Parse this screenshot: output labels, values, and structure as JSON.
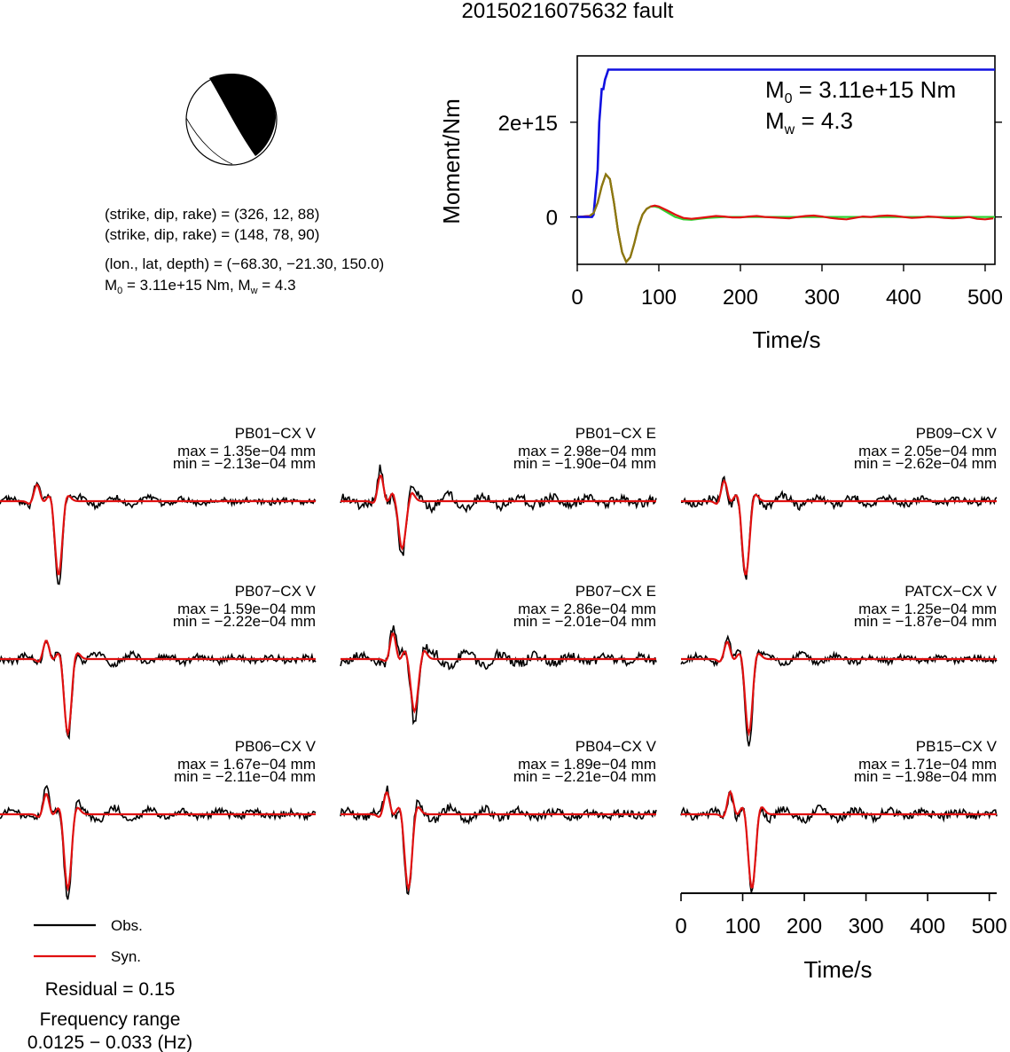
{
  "title": "20150216075632 fault",
  "mechanism": {
    "strike_dip_rake_1_label": "(strike, dip, rake) = (326, 12, 88)",
    "strike_dip_rake_2_label": "(strike, dip, rake) = (148, 78, 90)",
    "location_label": "(lon., lat, depth) = (−68.30, −21.30, 150.0)",
    "m0_prefix": "M",
    "m0_sub": "0",
    "m0_value_text": " = 3.11e+15 Nm, M",
    "mw_sub": "w",
    "mw_value_text": " = 4.3",
    "plane1": {
      "strike": 326,
      "dip": 12,
      "rake": 88
    },
    "plane2": {
      "strike": 148,
      "dip": 78,
      "rake": 90
    },
    "lon": -68.3,
    "lat": -21.3,
    "depth": 150.0
  },
  "moment_panel": {
    "annotation_m0_prefix": "M",
    "annotation_m0_sub": "0",
    "annotation_m0_value": " = 3.11e+15 Nm",
    "annotation_mw_prefix": "M",
    "annotation_mw_sub": "w",
    "annotation_mw_value": " = 4.3"
  },
  "legend": {
    "obs_label": "Obs.",
    "syn_label": "Syn.",
    "obs_color": "#000000",
    "syn_color": "#e01010"
  },
  "residual_label": "Residual = 0.15",
  "frequency_label": "Frequency range",
  "frequency_value": "0.0125 − 0.033 (Hz)",
  "chart_data": [
    {
      "type": "line",
      "xlabel": "Time/s",
      "ylabel": "Moment/Nm",
      "xlim": [
        0,
        512
      ],
      "ylim": [
        -1000000000000000.0,
        3400000000000000.0
      ],
      "xticks": [
        0,
        100,
        200,
        300,
        400,
        500
      ],
      "yticks": [
        0,
        2000000000000000.0
      ],
      "ytick_labels": [
        "0",
        "2e+15"
      ],
      "colors": {
        "cumulative": "#1010e0",
        "observed": "#e01010",
        "fit": "#30d030",
        "overlap": "#8a7a10"
      },
      "series": [
        {
          "name": "cumulative",
          "x": [
            0,
            18,
            20,
            25,
            27,
            30,
            32,
            34,
            36,
            38,
            40,
            512
          ],
          "y": [
            0,
            0,
            50000000000000.0,
            1000000000000000.0,
            2000000000000000.0,
            2700000000000000.0,
            2700000000000000.0,
            2900000000000000.0,
            3000000000000000.0,
            3110000000000000.0,
            3110000000000000.0,
            3110000000000000.0
          ]
        },
        {
          "name": "observed",
          "x": [
            0,
            15,
            20,
            25,
            30,
            35,
            40,
            45,
            50,
            55,
            60,
            65,
            70,
            75,
            80,
            85,
            90,
            95,
            100,
            110,
            120,
            130,
            140,
            150,
            160,
            170,
            180,
            190,
            200,
            210,
            220,
            230,
            240,
            250,
            260,
            270,
            280,
            290,
            300,
            310,
            320,
            330,
            340,
            350,
            360,
            370,
            380,
            390,
            400,
            410,
            420,
            430,
            440,
            450,
            460,
            470,
            480,
            490,
            500,
            510
          ],
          "y": [
            0,
            20000000000000.0,
            80000000000000.0,
            300000000000000.0,
            650000000000000.0,
            900000000000000.0,
            800000000000000.0,
            300000000000000.0,
            -300000000000000.0,
            -750000000000000.0,
            -950000000000000.0,
            -850000000000000.0,
            -550000000000000.0,
            -200000000000000.0,
            50000000000000.0,
            170000000000000.0,
            220000000000000.0,
            240000000000000.0,
            220000000000000.0,
            140000000000000.0,
            50000000000000.0,
            -20000000000000.0,
            -40000000000000.0,
            -20000000000000.0,
            0.0,
            20000000000000.0,
            10000000000000.0,
            -10000000000000.0,
            -10000000000000.0,
            10000000000000.0,
            20000000000000.0,
            0.0,
            -10000000000000.0,
            -20000000000000.0,
            -30000000000000.0,
            0.0,
            20000000000000.0,
            30000000000000.0,
            10000000000000.0,
            -20000000000000.0,
            -40000000000000.0,
            -50000000000000.0,
            -20000000000000.0,
            10000000000000.0,
            0.0,
            20000000000000.0,
            30000000000000.0,
            20000000000000.0,
            0.0,
            -20000000000000.0,
            -10000000000000.0,
            10000000000000.0,
            0.0,
            -20000000000000.0,
            -30000000000000.0,
            -20000000000000.0,
            0.0,
            -40000000000000.0,
            -50000000000000.0,
            -30000000000000.0
          ]
        },
        {
          "name": "fit",
          "x": [
            0,
            15,
            20,
            25,
            30,
            35,
            40,
            45,
            50,
            55,
            60,
            65,
            70,
            75,
            80,
            85,
            90,
            95,
            100,
            110,
            120,
            130,
            140,
            150,
            160,
            170,
            180,
            200,
            250,
            300,
            350,
            400,
            450,
            512
          ],
          "y": [
            0,
            20000000000000.0,
            80000000000000.0,
            300000000000000.0,
            650000000000000.0,
            900000000000000.0,
            800000000000000.0,
            300000000000000.0,
            -300000000000000.0,
            -750000000000000.0,
            -950000000000000.0,
            -850000000000000.0,
            -550000000000000.0,
            -200000000000000.0,
            50000000000000.0,
            170000000000000.0,
            220000000000000.0,
            220000000000000.0,
            200000000000000.0,
            100000000000000.0,
            0.0,
            -50000000000000.0,
            -60000000000000.0,
            -40000000000000.0,
            -20000000000000.0,
            -10000000000000.0,
            0.0,
            0.0,
            0.0,
            0.0,
            0.0,
            0.0,
            0.0,
            0.0
          ]
        }
      ]
    },
    {
      "type": "line",
      "xlabel": "Time/s",
      "xlim": [
        0,
        512
      ],
      "xticks": [
        0,
        100,
        200,
        300,
        400,
        500
      ],
      "panels": [
        {
          "station": "PB01−CX V",
          "max_label": "max = 1.35e−04 mm",
          "min_label": "min = −2.13e−04 mm",
          "max": 0.000135,
          "min": -0.000213,
          "peak_time": 95
        },
        {
          "station": "PB01−CX E",
          "max_label": "max = 2.98e−04 mm",
          "min_label": "min = −1.90e−04 mm",
          "max": 0.000298,
          "min": -0.00019,
          "peak_time": 100
        },
        {
          "station": "PB09−CX V",
          "max_label": "max = 2.05e−04 mm",
          "min_label": "min = −2.62e−04 mm",
          "max": 0.000205,
          "min": -0.000262,
          "peak_time": 105
        },
        {
          "station": "PB07−CX V",
          "max_label": "max = 1.59e−04 mm",
          "min_label": "min = −2.22e−04 mm",
          "max": 0.000159,
          "min": -0.000222,
          "peak_time": 110
        },
        {
          "station": "PB07−CX E",
          "max_label": "max = 2.86e−04 mm",
          "min_label": "min = −2.01e−04 mm",
          "max": 0.000286,
          "min": -0.000201,
          "peak_time": 120
        },
        {
          "station": "PATCX−CX V",
          "max_label": "max = 1.25e−04 mm",
          "min_label": "min = −1.87e−04 mm",
          "max": 0.000125,
          "min": -0.000187,
          "peak_time": 110
        },
        {
          "station": "PB06−CX V",
          "max_label": "max = 1.67e−04 mm",
          "min_label": "min = −2.11e−04 mm",
          "max": 0.000167,
          "min": -0.000211,
          "peak_time": 110
        },
        {
          "station": "PB04−CX V",
          "max_label": "max = 1.89e−04 mm",
          "min_label": "min = −2.21e−04 mm",
          "max": 0.000189,
          "min": -0.000221,
          "peak_time": 110
        },
        {
          "station": "PB15−CX V",
          "max_label": "max = 1.71e−04 mm",
          "min_label": "min = −1.98e−04 mm",
          "max": 0.000171,
          "min": -0.000198,
          "peak_time": 115
        }
      ]
    }
  ]
}
